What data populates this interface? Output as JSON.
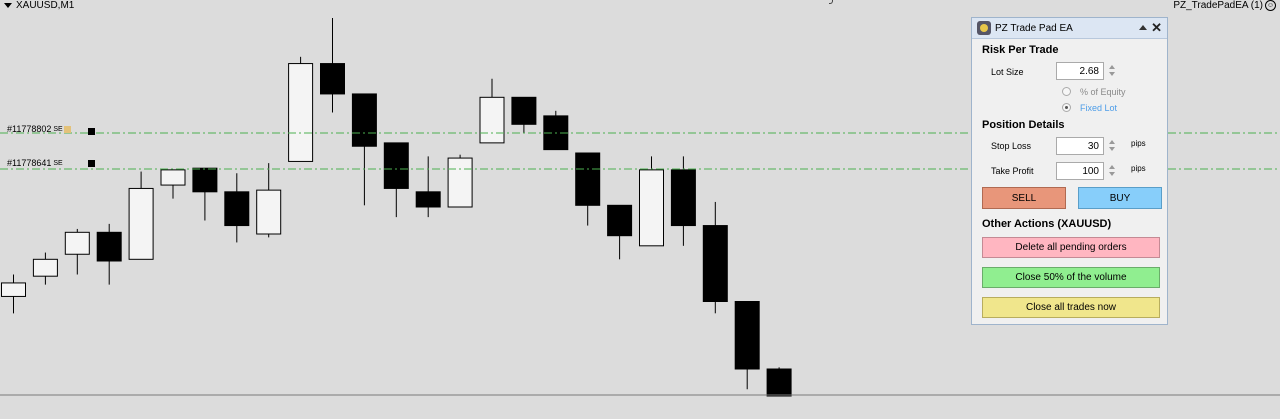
{
  "chart_header": {
    "symbol": "XAUUSD,M1",
    "ea_label": "PZ_TradePadEA (1)"
  },
  "orders": [
    {
      "ticket": "#11778802",
      "tail": "SE"
    },
    {
      "ticket": "#11778641",
      "tail": "SE"
    }
  ],
  "colors": {
    "chart_bg": "#dcdcdc",
    "grid_green": "#4caf50",
    "bull_fill": "#f4f4f4",
    "bear_fill": "#000000"
  },
  "candles": [
    {
      "o": 2651.2,
      "h": 2652.5,
      "l": 2650.2,
      "c": 2652.0
    },
    {
      "o": 2652.4,
      "h": 2653.8,
      "l": 2651.9,
      "c": 2653.4
    },
    {
      "o": 2653.7,
      "h": 2655.2,
      "l": 2652.5,
      "c": 2655.0
    },
    {
      "o": 2655.0,
      "h": 2655.5,
      "l": 2651.9,
      "c": 2653.3
    },
    {
      "o": 2653.4,
      "h": 2658.6,
      "l": 2653.4,
      "c": 2657.6
    },
    {
      "o": 2657.8,
      "h": 2658.6,
      "l": 2657.0,
      "c": 2658.7
    },
    {
      "o": 2658.8,
      "h": 2658.8,
      "l": 2655.7,
      "c": 2657.4
    },
    {
      "o": 2657.4,
      "h": 2658.5,
      "l": 2654.4,
      "c": 2655.4
    },
    {
      "o": 2654.9,
      "h": 2659.1,
      "l": 2654.7,
      "c": 2657.5
    },
    {
      "o": 2659.2,
      "h": 2665.4,
      "l": 2659.2,
      "c": 2665.0
    },
    {
      "o": 2665.0,
      "h": 2667.7,
      "l": 2662.1,
      "c": 2663.2
    },
    {
      "o": 2663.2,
      "h": 2663.2,
      "l": 2656.6,
      "c": 2660.1
    },
    {
      "o": 2660.3,
      "h": 2660.3,
      "l": 2655.9,
      "c": 2657.6
    },
    {
      "o": 2657.4,
      "h": 2659.5,
      "l": 2655.9,
      "c": 2656.5
    },
    {
      "o": 2656.5,
      "h": 2659.6,
      "l": 2656.5,
      "c": 2659.4
    },
    {
      "o": 2660.3,
      "h": 2664.1,
      "l": 2660.3,
      "c": 2663.0
    },
    {
      "o": 2663.0,
      "h": 2663.0,
      "l": 2660.9,
      "c": 2661.4
    },
    {
      "o": 2661.9,
      "h": 2662.2,
      "l": 2659.9,
      "c": 2659.9
    },
    {
      "o": 2659.7,
      "h": 2659.7,
      "l": 2655.4,
      "c": 2656.6
    },
    {
      "o": 2656.6,
      "h": 2656.6,
      "l": 2653.4,
      "c": 2654.8
    },
    {
      "o": 2654.2,
      "h": 2659.5,
      "l": 2654.2,
      "c": 2658.7
    },
    {
      "o": 2658.7,
      "h": 2659.5,
      "l": 2654.2,
      "c": 2655.4
    },
    {
      "o": 2655.4,
      "h": 2656.8,
      "l": 2650.2,
      "c": 2650.9
    },
    {
      "o": 2650.9,
      "h": 2650.9,
      "l": 2645.7,
      "c": 2646.9
    },
    {
      "o": 2646.9,
      "h": 2647.0,
      "l": 2645.3,
      "c": 2645.3
    }
  ],
  "panel": {
    "title": "PZ Trade Pad EA",
    "risk_header": "Risk Per Trade",
    "lot_label": "Lot Size",
    "lot_value": "2.68",
    "opt_equity": "% of Equity",
    "opt_fixed": "Fixed Lot",
    "pos_header": "Position Details",
    "sl_label": "Stop Loss",
    "sl_value": "30",
    "tp_label": "Take Profit",
    "tp_value": "100",
    "pips_unit": "pips",
    "sell_label": "SELL",
    "buy_label": "BUY",
    "actions_header": "Other Actions (XAUUSD)",
    "delete_pending": "Delete all pending orders",
    "close_half": "Close 50% of the volume",
    "close_all": "Close all trades now",
    "btn_colors": {
      "sell": "#e8967a",
      "buy": "#87cefa",
      "delete": "#ffb6c1",
      "close_half": "#90ee90",
      "close_all": "#f0e68c"
    }
  }
}
